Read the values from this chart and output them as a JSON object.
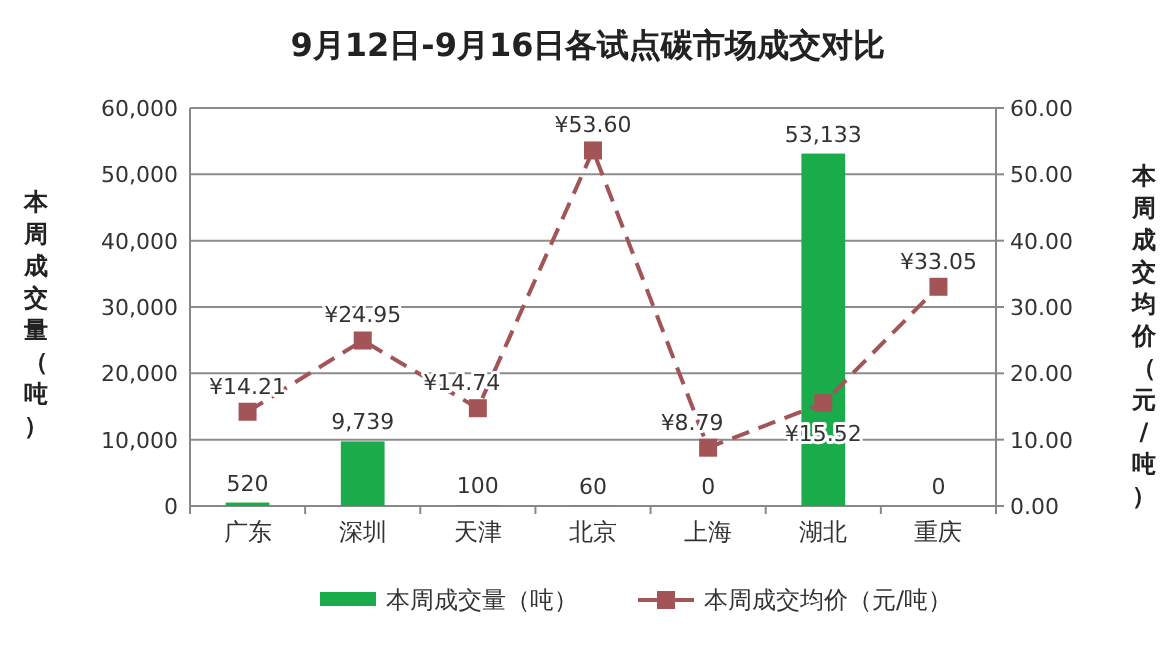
{
  "chart_data": {
    "type": "bar",
    "title": "9月12日-9月16日各试点碳市场成交对比",
    "ylabel": "本周成交量（吨）",
    "y2label": "本周成交均价（元/吨）",
    "categories": [
      "广东",
      "深圳",
      "天津",
      "北京",
      "上海",
      "湖北",
      "重庆"
    ],
    "series": [
      {
        "name": "本周成交量（吨）",
        "color": "#1aab4b",
        "values": [
          520,
          9739,
          100,
          60,
          0,
          53133,
          0
        ],
        "value_labels": [
          "520",
          "9,739",
          "100",
          "60",
          "0",
          "53,133",
          "0"
        ]
      },
      {
        "name": "本周成交均价（元/吨）",
        "type": "line",
        "axis": "y2",
        "color": "#a35457",
        "line_style": "dashed",
        "marker": "square",
        "values": [
          14.21,
          24.95,
          14.74,
          53.6,
          8.79,
          15.52,
          33.05
        ],
        "value_labels": [
          "¥14.21",
          "¥24.95",
          "¥14.74",
          "¥53.60",
          "¥8.79",
          "¥15.52",
          "¥33.05"
        ]
      }
    ],
    "ylim": [
      0,
      60000
    ],
    "yticks": [
      {
        "value": 0,
        "label": "0"
      },
      {
        "value": 10000,
        "label": "10,000"
      },
      {
        "value": 20000,
        "label": "20,000"
      },
      {
        "value": 30000,
        "label": "30,000"
      },
      {
        "value": 40000,
        "label": "40,000"
      },
      {
        "value": 50000,
        "label": "50,000"
      },
      {
        "value": 60000,
        "label": "60,000"
      }
    ],
    "y2lim": [
      0,
      60
    ],
    "y2ticks": [
      {
        "value": 0,
        "label": "0.00"
      },
      {
        "value": 10,
        "label": "10.00"
      },
      {
        "value": 20,
        "label": "20.00"
      },
      {
        "value": 30,
        "label": "30.00"
      },
      {
        "value": 40,
        "label": "40.00"
      },
      {
        "value": 50,
        "label": "50.00"
      },
      {
        "value": 60,
        "label": "60.00"
      }
    ],
    "grid": "y",
    "legend": "bottom"
  }
}
